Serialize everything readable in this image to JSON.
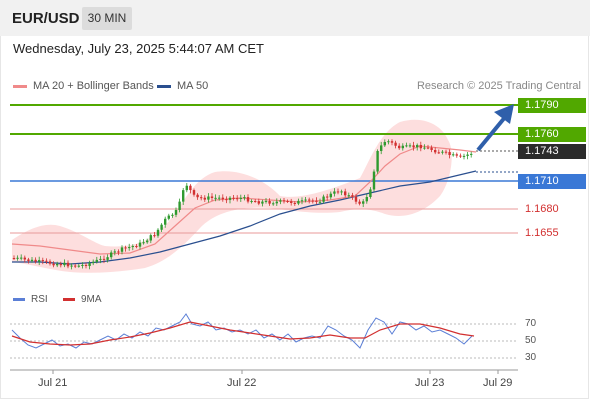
{
  "header": {
    "pair": "EUR/USD",
    "timeframe": "30 MIN"
  },
  "datetime": "Wednesday, July 23, 2025 5:44:07 AM CET",
  "legend": {
    "ma20_label": "MA 20 + Bollinger Bands",
    "ma50_label": "MA 50",
    "copyright": "Research © 2025 Trading Central"
  },
  "levels": [
    {
      "value": "1.1790",
      "style": "green"
    },
    {
      "value": "1.1760",
      "style": "green"
    },
    {
      "value": "1.1743",
      "style": "dark"
    },
    {
      "value": "1.1710",
      "style": "blue"
    },
    {
      "value": "1.1680",
      "style": "red"
    },
    {
      "value": "1.1655",
      "style": "red"
    }
  ],
  "rsi": {
    "rsi_label": "RSI",
    "ma_label": "9MA",
    "ticks": [
      "70",
      "50",
      "30"
    ]
  },
  "x_axis": {
    "labels": [
      "Jul 21",
      "Jul 22",
      "Jul 23",
      "Jul 29"
    ]
  },
  "colors": {
    "green": "#51a800",
    "blue": "#3a78d6",
    "red": "#d23030",
    "ma20": "#f08a8a",
    "ma50": "#2a4f8f",
    "band": "#fdd8d8",
    "bull": "#2f9a2f",
    "bear": "#d23030",
    "arrow": "#2f5faa"
  }
}
